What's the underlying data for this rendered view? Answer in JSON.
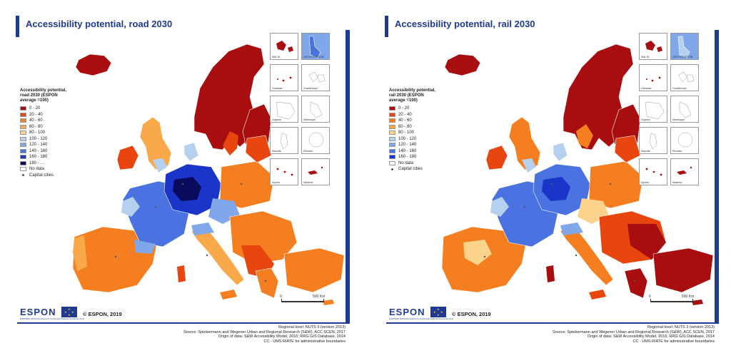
{
  "panels": [
    {
      "id": "road",
      "title": "Accessibility potential, road 2030",
      "legend": {
        "title_lines": [
          "Accessibility potential,",
          "road 2030  (ESPON",
          "average =100)"
        ],
        "classes": [
          {
            "label": "0 -  20",
            "color": "#a80d10"
          },
          {
            "label": "20 -  40",
            "color": "#e8460e"
          },
          {
            "label": "40 -  60",
            "color": "#f57f20"
          },
          {
            "label": "60 -  80",
            "color": "#f9a94a"
          },
          {
            "label": "80 - 100",
            "color": "#fcd38c"
          },
          {
            "label": "100 - 120",
            "color": "#b6d0f0"
          },
          {
            "label": "120 - 140",
            "color": "#7fa7ea"
          },
          {
            "label": "140 - 160",
            "color": "#4a72e0"
          },
          {
            "label": "160 - 180",
            "color": "#1a35c8"
          },
          {
            "label": "180 - ...",
            "color": "#0a0a5c"
          }
        ],
        "no_data_label": "No data",
        "capital_label": "Capital cities"
      },
      "insets": [
        "MALTA",
        "LIECHTENSTEIN",
        "Canarias",
        "Guadeloupe",
        "Guyane",
        "Martinique",
        "Mayotte",
        "Réunion",
        "Açores",
        "Madeira"
      ],
      "scale": {
        "zero": "0",
        "max": "500 Km"
      },
      "copyright": "© ESPON, 2019",
      "logo_text": "ESPON",
      "logo_subtext": "EUROPEAN UNION Part-financed by the European Regional Development Fund",
      "source_lines": [
        "Regional level: NUTS 3 (version 2013)",
        "Source: Spiekermann and Wegener Urban and Regional Research (S&W), ACC SCEN, 2017",
        "Origin of data: S&W Accessibility Model, 2016; RRG GIS Database, 2014",
        "CC - UMS RIATE for administrative boundaries"
      ]
    },
    {
      "id": "rail",
      "title": "Accessibility potential, rail 2030",
      "legend": {
        "title_lines": [
          "Accessibility potential,",
          "rail 2030  (ESPON",
          "average =100)"
        ],
        "classes": [
          {
            "label": "0 -  20",
            "color": "#a80d10"
          },
          {
            "label": "20 -  40",
            "color": "#e8460e"
          },
          {
            "label": "40 -  60",
            "color": "#f57f20"
          },
          {
            "label": "60 -  80",
            "color": "#f9a94a"
          },
          {
            "label": "80 - 100",
            "color": "#fcd38c"
          },
          {
            "label": "100 - 120",
            "color": "#b6d0f0"
          },
          {
            "label": "120 - 140",
            "color": "#7fa7ea"
          },
          {
            "label": "140 - 160",
            "color": "#4a72e0"
          },
          {
            "label": "160 - 180",
            "color": "#1a35c8"
          }
        ],
        "no_data_label": "No data",
        "capital_label": "Capital cities"
      },
      "insets": [
        "MALTA",
        "LIECHTENSTEIN",
        "Canarias",
        "Guadeloupe",
        "Guyane",
        "Martinique",
        "Mayotte",
        "Réunion",
        "Açores",
        "Madeira"
      ],
      "scale": {
        "zero": "0",
        "max": "500 Km"
      },
      "copyright": "© ESPON, 2019",
      "logo_text": "ESPON",
      "logo_subtext": "EUROPEAN UNION Part-financed by the European Regional Development Fund",
      "source_lines": [
        "Regional level: NUTS 3 (version 2013)",
        "Source: Spiekermann and Wegener Urban and Regional Research (S&W), ACC SCEN, 2017",
        "Origin of data: S&W Accessibility Model, 2016; RRG GIS Database, 2014",
        "CC - UMS RIATE for administrative boundaries"
      ]
    }
  ],
  "colors": {
    "brand_blue": "#1f3a93",
    "sea": "#ffffff",
    "non_eu_land": "#e8e8e8",
    "border_line": "#ffffff"
  }
}
